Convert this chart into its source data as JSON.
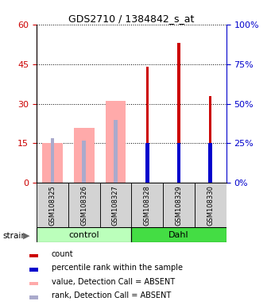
{
  "title": "GDS2710 / 1384842_s_at",
  "samples": [
    "GSM108325",
    "GSM108326",
    "GSM108327",
    "GSM108328",
    "GSM108329",
    "GSM108330"
  ],
  "count_values": [
    null,
    null,
    null,
    44,
    53,
    33
  ],
  "rank_pct_values": [
    null,
    null,
    null,
    25,
    25,
    25
  ],
  "count_absent": [
    15,
    21,
    31,
    null,
    null,
    null
  ],
  "rank_absent_pct": [
    17,
    16,
    24,
    null,
    null,
    null
  ],
  "ylim_left": [
    0,
    60
  ],
  "ylim_right": [
    0,
    100
  ],
  "yticks_left": [
    0,
    15,
    30,
    45,
    60
  ],
  "yticks_right": [
    0,
    25,
    50,
    75,
    100
  ],
  "color_count": "#cc0000",
  "color_rank": "#0000cc",
  "color_count_absent": "#ffaaaa",
  "color_rank_absent": "#aaaacc",
  "color_group_control": "#bbffbb",
  "color_group_dahl": "#44dd44",
  "background_color": "#ffffff",
  "legend_items": [
    [
      "#cc0000",
      "count"
    ],
    [
      "#0000cc",
      "percentile rank within the sample"
    ],
    [
      "#ffaaaa",
      "value, Detection Call = ABSENT"
    ],
    [
      "#aaaacc",
      "rank, Detection Call = ABSENT"
    ]
  ]
}
